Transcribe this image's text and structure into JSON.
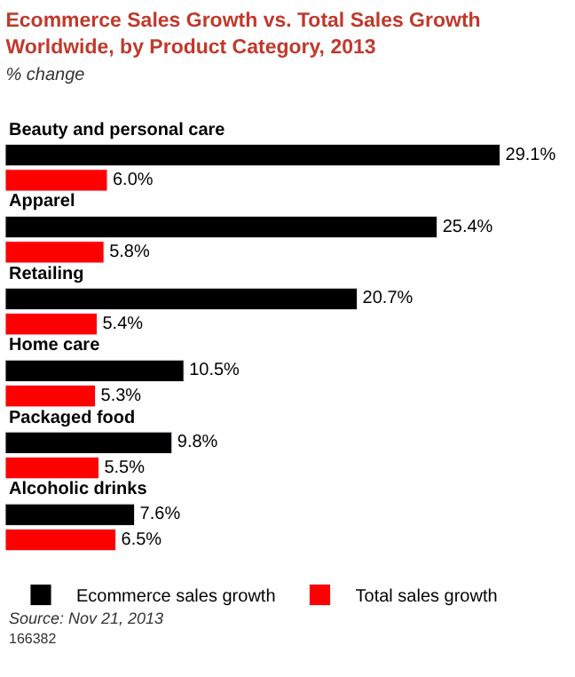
{
  "chart_data": {
    "type": "bar",
    "orientation": "horizontal",
    "title": "Ecommerce Sales Growth vs. Total Sales Growth Worldwide, by Product Category, 2013",
    "subtitle": "% change",
    "categories": [
      "Beauty and personal care",
      "Apparel",
      "Retailing",
      "Home care",
      "Packaged food",
      "Alcoholic drinks"
    ],
    "series": [
      {
        "name": "Ecommerce sales growth",
        "color": "#000000",
        "values": [
          29.1,
          25.4,
          20.7,
          10.5,
          9.8,
          7.6
        ],
        "value_labels": [
          "29.1%",
          "25.4%",
          "20.7%",
          "10.5%",
          "9.8%",
          "7.6%"
        ]
      },
      {
        "name": "Total sales growth",
        "color": "#ff0000",
        "values": [
          6.0,
          5.8,
          5.4,
          5.3,
          5.5,
          6.5
        ],
        "value_labels": [
          "6.0%",
          "5.8%",
          "5.4%",
          "5.3%",
          "5.5%",
          "6.5%"
        ]
      }
    ],
    "legend": "bottom",
    "annotations": [
      "Source: Nov 21, 2013",
      "166382"
    ]
  }
}
